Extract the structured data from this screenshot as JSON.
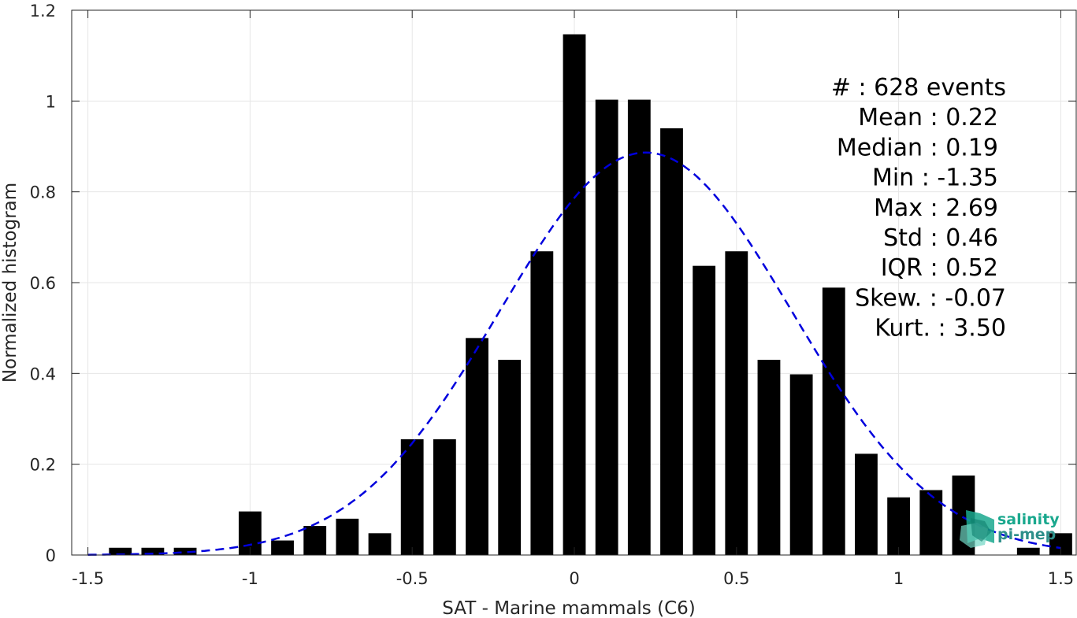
{
  "chart_data": {
    "type": "bar",
    "xlabel": "SAT - Marine mammals (C6)",
    "ylabel": "Normalized histogram",
    "xlim": [
      -1.55,
      1.55
    ],
    "ylim": [
      0,
      1.2
    ],
    "grid": true,
    "x_ticks": [
      -1.5,
      -1,
      -0.5,
      0,
      0.5,
      1,
      1.5
    ],
    "x_tick_labels": [
      "-1.5",
      "-1",
      "-0.5",
      "0",
      "0.5",
      "1",
      "1.5"
    ],
    "y_ticks": [
      0,
      0.2,
      0.4,
      0.6,
      0.8,
      1,
      1.2
    ],
    "y_tick_labels": [
      "0",
      "0.2",
      "0.4",
      "0.6",
      "0.8",
      "1",
      "1.2"
    ],
    "bin_width": 0.1,
    "bar_color": "#000000",
    "fit_color": "#0000dd",
    "bars": [
      {
        "x": -1.4,
        "y": 0.016
      },
      {
        "x": -1.3,
        "y": 0.016
      },
      {
        "x": -1.2,
        "y": 0.016
      },
      {
        "x": -1.0,
        "y": 0.096
      },
      {
        "x": -0.9,
        "y": 0.032
      },
      {
        "x": -0.8,
        "y": 0.064
      },
      {
        "x": -0.7,
        "y": 0.08
      },
      {
        "x": -0.6,
        "y": 0.048
      },
      {
        "x": -0.5,
        "y": 0.255
      },
      {
        "x": -0.4,
        "y": 0.255
      },
      {
        "x": -0.3,
        "y": 0.478
      },
      {
        "x": -0.2,
        "y": 0.43
      },
      {
        "x": -0.1,
        "y": 0.669
      },
      {
        "x": 0.0,
        "y": 1.147
      },
      {
        "x": 0.1,
        "y": 1.003
      },
      {
        "x": 0.2,
        "y": 1.003
      },
      {
        "x": 0.3,
        "y": 0.94
      },
      {
        "x": 0.4,
        "y": 0.637
      },
      {
        "x": 0.5,
        "y": 0.669
      },
      {
        "x": 0.6,
        "y": 0.43
      },
      {
        "x": 0.7,
        "y": 0.398
      },
      {
        "x": 0.8,
        "y": 0.589
      },
      {
        "x": 0.9,
        "y": 0.223
      },
      {
        "x": 1.0,
        "y": 0.127
      },
      {
        "x": 1.1,
        "y": 0.143
      },
      {
        "x": 1.2,
        "y": 0.175
      },
      {
        "x": 1.4,
        "y": 0.016
      },
      {
        "x": 1.5,
        "y": 0.048
      }
    ],
    "fit": {
      "type": "normal",
      "mean": 0.22,
      "std": 0.45,
      "x_range": [
        -1.5,
        1.5
      ]
    },
    "annotations": [
      "#  : 628 events",
      "Mean : 0.22",
      "Median : 0.19",
      "Min : -1.35",
      "Max : 2.69",
      "Std : 0.46",
      "IQR : 0.52",
      "Skew. : -0.07",
      "Kurt. : 3.50"
    ]
  },
  "logo": {
    "line1": "salinity",
    "line2": "pi-mep",
    "color1": "#1aa88e",
    "color2": "#2e8f8a"
  }
}
